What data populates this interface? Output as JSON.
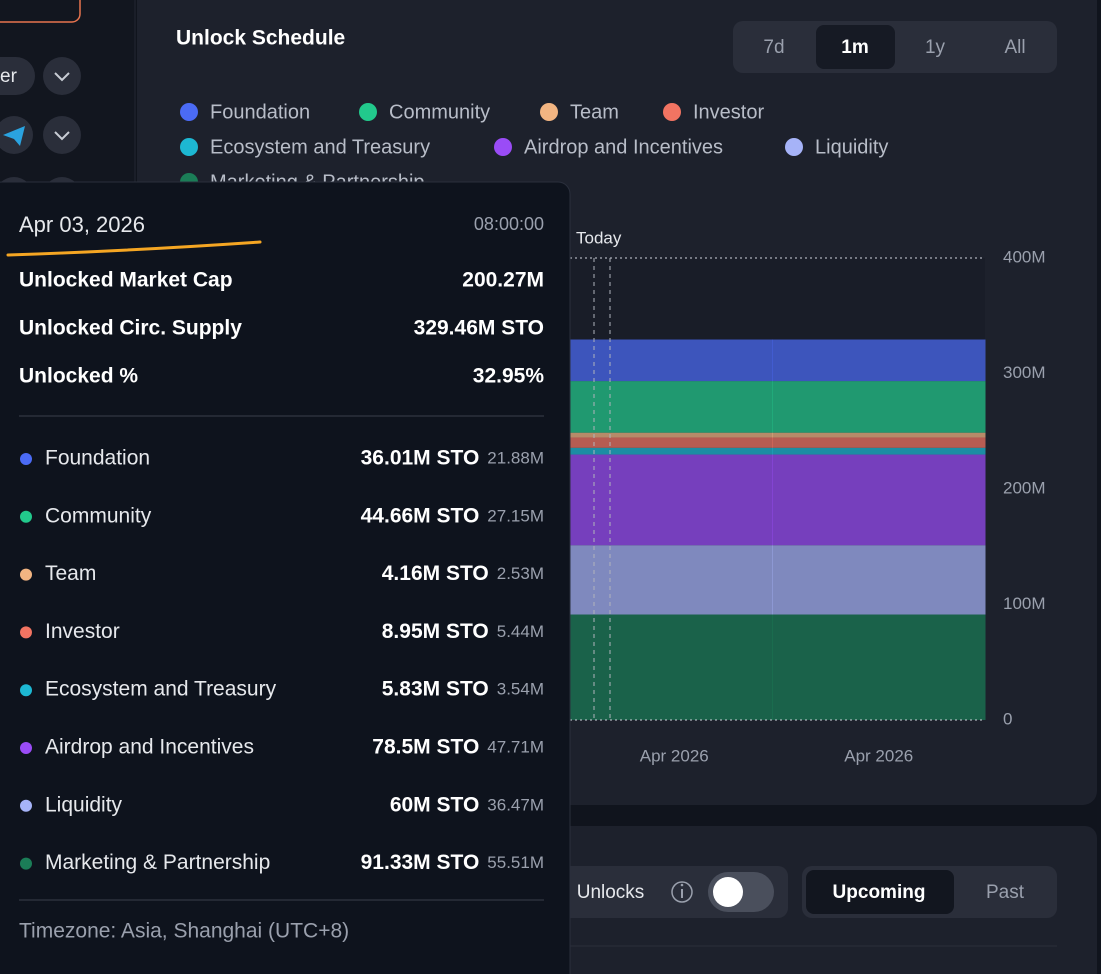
{
  "sidebar": {
    "button": "er"
  },
  "range_tabs": {
    "options": [
      "7d",
      "1m",
      "1y",
      "All"
    ],
    "active": 1
  },
  "chart_data": {
    "type": "area",
    "title": "Unlock Schedule",
    "annotation": "Today",
    "categories": [
      "Apr 2026",
      "Apr 2026"
    ],
    "series": [
      {
        "name": "Foundation",
        "color": "#4b6bf5",
        "values": [
          36.01,
          36.01
        ]
      },
      {
        "name": "Community",
        "color": "#22c98c",
        "values": [
          44.66,
          44.66
        ]
      },
      {
        "name": "Team",
        "color": "#f2b582",
        "values": [
          4.16,
          4.16
        ]
      },
      {
        "name": "Investor",
        "color": "#f27462",
        "values": [
          8.95,
          8.95
        ]
      },
      {
        "name": "Ecosystem and Treasury",
        "color": "#1db8d3",
        "values": [
          5.83,
          5.83
        ]
      },
      {
        "name": "Airdrop and Incentives",
        "color": "#9a4cf6",
        "values": [
          78.5,
          78.5
        ]
      },
      {
        "name": "Liquidity",
        "color": "#a6b3f8",
        "values": [
          60,
          60
        ]
      },
      {
        "name": "Marketing & Partnership",
        "color": "#1b7d57",
        "values": [
          91.33,
          91.33
        ]
      }
    ],
    "ylim": [
      0,
      400
    ],
    "yticks": [
      0,
      {
        "value": 100,
        "label": "100M"
      },
      {
        "value": 200,
        "label": "200M"
      },
      {
        "value": 300,
        "label": "300M"
      },
      {
        "value": 400,
        "label": "400M"
      }
    ]
  },
  "tooltip": {
    "date": "Apr 03, 2026",
    "time": "08:00:00",
    "summary": [
      {
        "label": "Unlocked Market Cap",
        "value": "200.27M"
      },
      {
        "label": "Unlocked Circ. Supply",
        "value": "329.46M STO"
      },
      {
        "label": "Unlocked %",
        "value": "32.95%"
      }
    ],
    "rows": [
      {
        "amount": "36.01M STO",
        "value": "21.88M"
      },
      {
        "amount": "44.66M STO",
        "value": "27.15M"
      },
      {
        "amount": "4.16M STO",
        "value": "2.53M"
      },
      {
        "amount": "8.95M STO",
        "value": "5.44M"
      },
      {
        "amount": "5.83M STO",
        "value": "3.54M"
      },
      {
        "amount": "78.5M STO",
        "value": "47.71M"
      },
      {
        "amount": "60M STO",
        "value": "36.47M"
      },
      {
        "amount": "91.33M STO",
        "value": "55.51M"
      }
    ],
    "timezone": "Timezone: Asia, Shanghai (UTC+8)"
  },
  "footer": {
    "toggle_label": "ll Unlocks",
    "tabs": [
      "Upcoming",
      "Past"
    ],
    "active": 0
  }
}
